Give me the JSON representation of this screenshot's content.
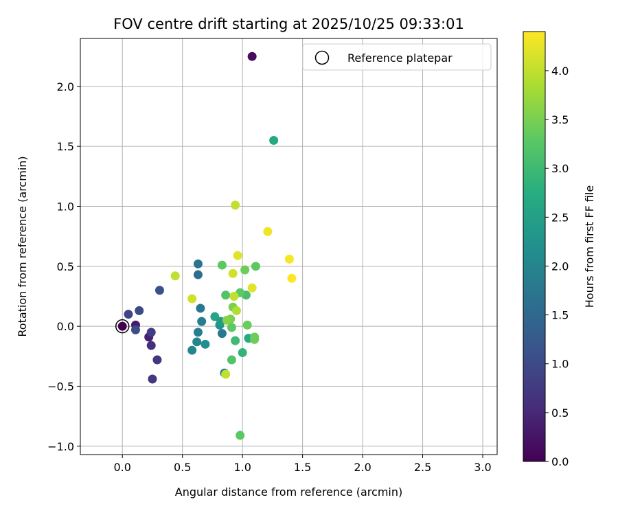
{
  "chart_data": {
    "type": "scatter",
    "title": "FOV centre drift starting at 2025/10/25 09:33:01",
    "xlabel": "Angular distance from reference (arcmin)",
    "ylabel": "Rotation from reference (arcmin)",
    "xlim": [
      -0.35,
      3.12
    ],
    "ylim": [
      -1.07,
      2.4
    ],
    "xticks": [
      0.0,
      0.5,
      1.0,
      1.5,
      2.0,
      2.5,
      3.0
    ],
    "xtick_labels": [
      "0.0",
      "0.5",
      "1.0",
      "1.5",
      "2.0",
      "2.5",
      "3.0"
    ],
    "yticks": [
      -1.0,
      -0.5,
      0.0,
      0.5,
      1.0,
      1.5,
      2.0
    ],
    "ytick_labels": [
      "−1.0",
      "−0.5",
      "0.0",
      "0.5",
      "1.0",
      "1.5",
      "2.0"
    ],
    "grid": true,
    "legend": {
      "position": "top-right",
      "entries": [
        "Reference platepar"
      ]
    },
    "reference_point": {
      "x": 0.0,
      "y": 0.0,
      "label": "Reference platepar"
    },
    "colorbar": {
      "label": "Hours from first FF file",
      "range": [
        0.0,
        4.4
      ],
      "ticks": [
        0.0,
        0.5,
        1.0,
        1.5,
        2.0,
        2.5,
        3.0,
        3.5,
        4.0
      ],
      "tick_labels": [
        "0.0",
        "0.5",
        "1.0",
        "1.5",
        "2.0",
        "2.5",
        "3.0",
        "3.5",
        "4.0"
      ],
      "colormap": "viridis"
    },
    "points": [
      {
        "x": 0.0,
        "y": 0.0,
        "t": 0.0
      },
      {
        "x": 1.08,
        "y": 2.25,
        "t": 0.15
      },
      {
        "x": 0.11,
        "y": 0.01,
        "t": 0.35
      },
      {
        "x": 0.22,
        "y": -0.09,
        "t": 0.4
      },
      {
        "x": 0.24,
        "y": -0.16,
        "t": 0.6
      },
      {
        "x": 0.29,
        "y": -0.28,
        "t": 0.7
      },
      {
        "x": 0.25,
        "y": -0.44,
        "t": 0.75
      },
      {
        "x": 0.24,
        "y": -0.05,
        "t": 0.8
      },
      {
        "x": 0.05,
        "y": 0.1,
        "t": 0.9
      },
      {
        "x": 0.14,
        "y": 0.13,
        "t": 1.0
      },
      {
        "x": 0.11,
        "y": -0.03,
        "t": 1.05
      },
      {
        "x": 0.31,
        "y": 0.3,
        "t": 1.1
      },
      {
        "x": 0.63,
        "y": 0.43,
        "t": 1.6
      },
      {
        "x": 0.63,
        "y": 0.52,
        "t": 1.7
      },
      {
        "x": 0.65,
        "y": 0.15,
        "t": 1.8
      },
      {
        "x": 0.66,
        "y": 0.04,
        "t": 1.85
      },
      {
        "x": 0.63,
        "y": -0.05,
        "t": 1.9
      },
      {
        "x": 0.58,
        "y": -0.2,
        "t": 2.0
      },
      {
        "x": 0.62,
        "y": -0.13,
        "t": 2.0
      },
      {
        "x": 0.83,
        "y": -0.06,
        "t": 1.8
      },
      {
        "x": 0.85,
        "y": -0.39,
        "t": 1.9
      },
      {
        "x": 0.69,
        "y": -0.15,
        "t": 2.2
      },
      {
        "x": 0.81,
        "y": 0.01,
        "t": 2.3
      },
      {
        "x": 0.77,
        "y": 0.08,
        "t": 2.6
      },
      {
        "x": 0.82,
        "y": 0.04,
        "t": 2.4
      },
      {
        "x": 1.26,
        "y": 1.55,
        "t": 2.65
      },
      {
        "x": 1.05,
        "y": -0.1,
        "t": 2.7
      },
      {
        "x": 1.0,
        "y": -0.22,
        "t": 2.9
      },
      {
        "x": 0.94,
        "y": -0.12,
        "t": 3.0
      },
      {
        "x": 0.91,
        "y": -0.28,
        "t": 3.2
      },
      {
        "x": 0.98,
        "y": -0.91,
        "t": 3.3
      },
      {
        "x": 1.03,
        "y": 0.26,
        "t": 3.1
      },
      {
        "x": 0.86,
        "y": 0.26,
        "t": 3.2
      },
      {
        "x": 0.98,
        "y": 0.28,
        "t": 3.3
      },
      {
        "x": 1.04,
        "y": 0.01,
        "t": 3.4
      },
      {
        "x": 0.91,
        "y": -0.01,
        "t": 3.3
      },
      {
        "x": 0.9,
        "y": 0.06,
        "t": 3.5
      },
      {
        "x": 0.87,
        "y": 0.05,
        "t": 3.6
      },
      {
        "x": 0.92,
        "y": 0.16,
        "t": 3.5
      },
      {
        "x": 1.1,
        "y": -0.11,
        "t": 3.45
      },
      {
        "x": 1.1,
        "y": -0.09,
        "t": 3.4
      },
      {
        "x": 0.83,
        "y": 0.51,
        "t": 3.3
      },
      {
        "x": 1.02,
        "y": 0.47,
        "t": 3.4
      },
      {
        "x": 1.11,
        "y": 0.5,
        "t": 3.3
      },
      {
        "x": 0.86,
        "y": -0.4,
        "t": 4.0
      },
      {
        "x": 0.92,
        "y": 0.44,
        "t": 4.1
      },
      {
        "x": 0.93,
        "y": 0.25,
        "t": 4.0
      },
      {
        "x": 0.95,
        "y": 0.13,
        "t": 3.9
      },
      {
        "x": 0.94,
        "y": 1.01,
        "t": 4.0
      },
      {
        "x": 0.96,
        "y": 0.59,
        "t": 4.2
      },
      {
        "x": 1.08,
        "y": 0.32,
        "t": 4.2
      },
      {
        "x": 0.58,
        "y": 0.23,
        "t": 4.1
      },
      {
        "x": 0.44,
        "y": 0.42,
        "t": 4.0
      },
      {
        "x": 1.21,
        "y": 0.79,
        "t": 4.3
      },
      {
        "x": 1.39,
        "y": 0.56,
        "t": 4.35
      },
      {
        "x": 1.41,
        "y": 0.4,
        "t": 4.4
      }
    ]
  }
}
